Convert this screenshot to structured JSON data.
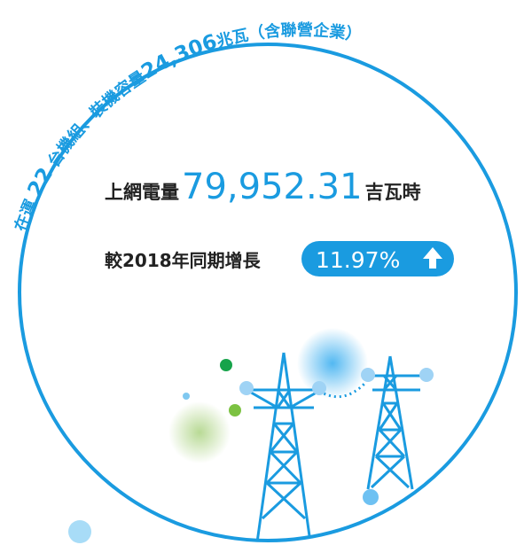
{
  "arc_text": {
    "parts": [
      "在運 ",
      "22",
      " 台機組、裝機容量",
      "24,306",
      "兆瓦（含聯營企業）"
    ]
  },
  "output": {
    "label": "上網電量",
    "value": "79,952.31",
    "unit": "吉瓦時"
  },
  "growth": {
    "label": "較2018年同期增長",
    "value": "11.97%"
  }
}
